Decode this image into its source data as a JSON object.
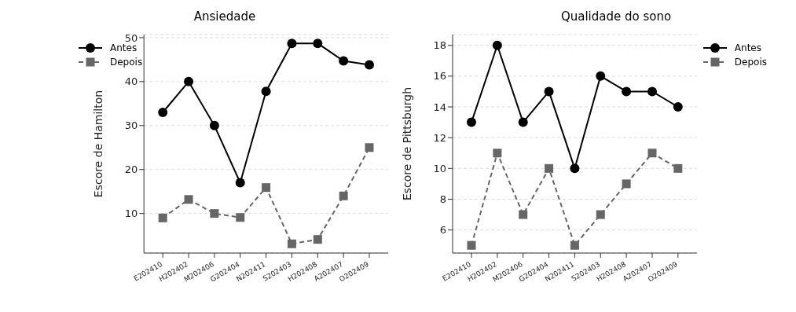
{
  "chart_data": [
    {
      "type": "line",
      "title": "Ansiedade",
      "ylabel": "Escore de Hamilton",
      "categories": [
        "E202410",
        "H202402",
        "M202406",
        "G202404",
        "N202411",
        "S202403",
        "H202408",
        "A202407",
        "O202409"
      ],
      "series": [
        {
          "name": "Antes",
          "color": "#000000",
          "marker": "circle",
          "line_style": "solid",
          "values": [
            33,
            40,
            30,
            17,
            37.8,
            48.7,
            48.7,
            44.7,
            43.8
          ]
        },
        {
          "name": "Depois",
          "color": "#666666",
          "marker": "square",
          "line_style": "dashed",
          "values": [
            9,
            13.2,
            10,
            9.1,
            15.9,
            3.1,
            4.1,
            14,
            25
          ]
        }
      ],
      "ylim": [
        1,
        50.7
      ],
      "yticks": [
        10,
        20,
        30,
        40,
        50
      ],
      "grid": "y",
      "legend": "top left"
    },
    {
      "type": "line",
      "title": "Qualidade do sono",
      "ylabel": "Escore de Pittsburgh",
      "categories": [
        "E202410",
        "H202402",
        "M202406",
        "G202404",
        "N202411",
        "S202403",
        "H202408",
        "A202407",
        "O202409"
      ],
      "series": [
        {
          "name": "Antes",
          "color": "#000000",
          "marker": "circle",
          "line_style": "solid",
          "values": [
            13,
            18,
            13,
            15,
            10,
            16,
            15,
            15,
            14
          ]
        },
        {
          "name": "Depois",
          "color": "#666666",
          "marker": "square",
          "line_style": "dashed",
          "values": [
            5,
            11,
            7,
            10,
            5,
            7,
            9,
            11,
            10
          ]
        }
      ],
      "ylim": [
        4.5,
        18.7
      ],
      "yticks": [
        6,
        8,
        10,
        12,
        14,
        16,
        18
      ],
      "grid": "y",
      "legend": "top right"
    }
  ]
}
